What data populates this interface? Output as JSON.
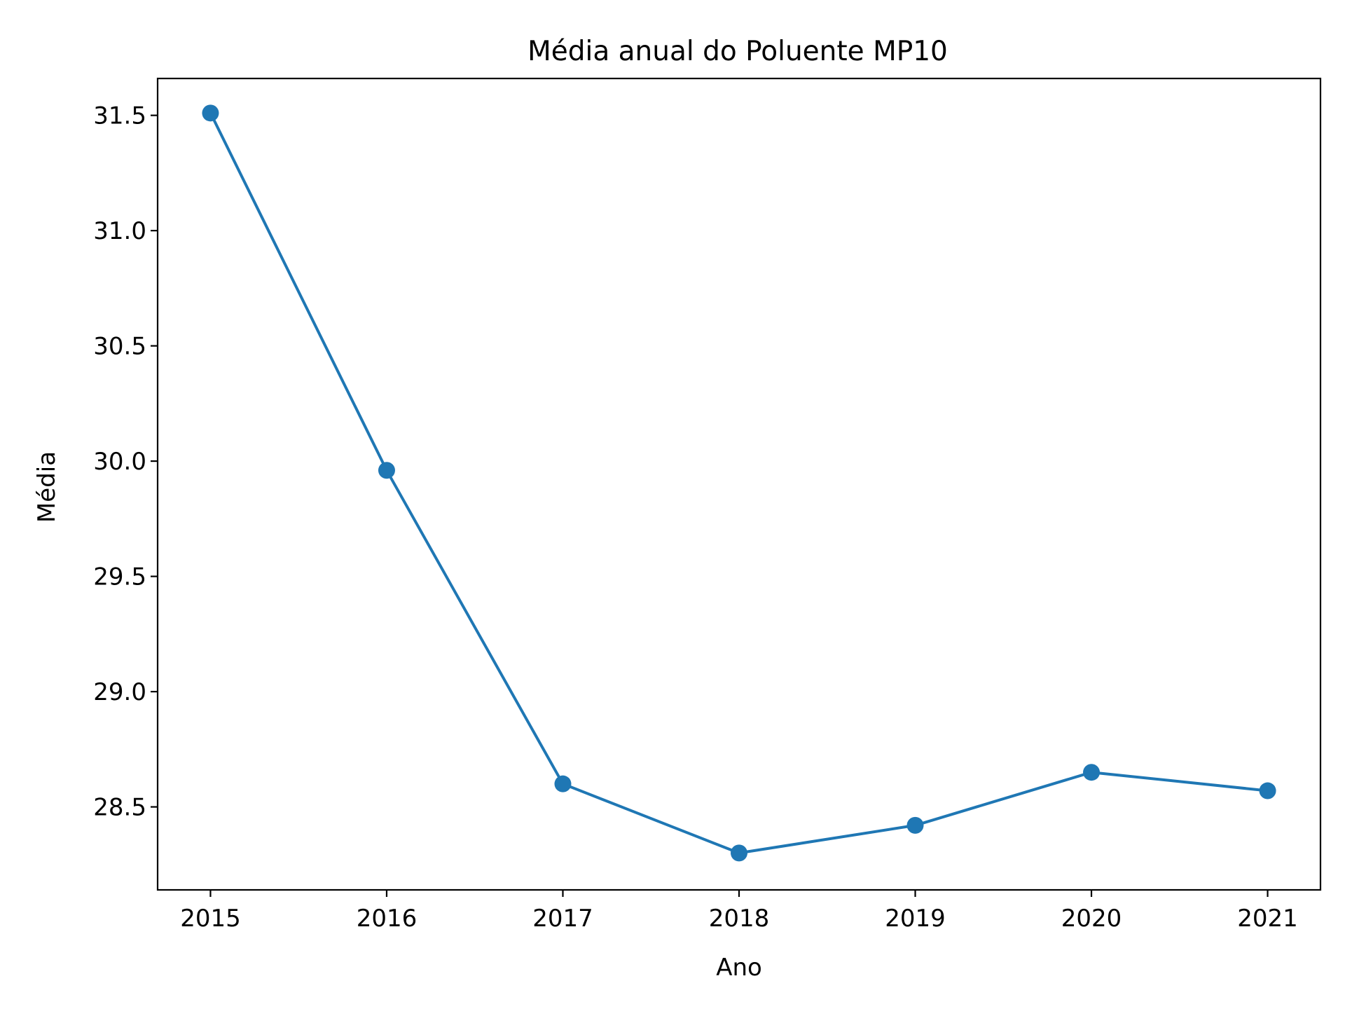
{
  "chart_data": {
    "type": "line",
    "title": "Média anual do Poluente MP10",
    "xlabel": "Ano",
    "ylabel": "Média",
    "x": [
      2015,
      2016,
      2017,
      2018,
      2019,
      2020,
      2021
    ],
    "x_tick_labels": [
      "2015",
      "2016",
      "2017",
      "2018",
      "2019",
      "2020",
      "2021"
    ],
    "y_ticks": [
      28.5,
      29.0,
      29.5,
      30.0,
      30.5,
      31.0,
      31.5
    ],
    "y_tick_labels": [
      "28.5",
      "29.0",
      "29.5",
      "30.0",
      "30.5",
      "31.0",
      "31.5"
    ],
    "xlim": [
      2014.7,
      2021.3
    ],
    "ylim": [
      28.14,
      31.66
    ],
    "grid": false,
    "series": [
      {
        "values": [
          31.51,
          29.96,
          28.6,
          28.3,
          28.42,
          28.65,
          28.57
        ],
        "color": "#1f77b4",
        "marker": "circle"
      }
    ]
  }
}
